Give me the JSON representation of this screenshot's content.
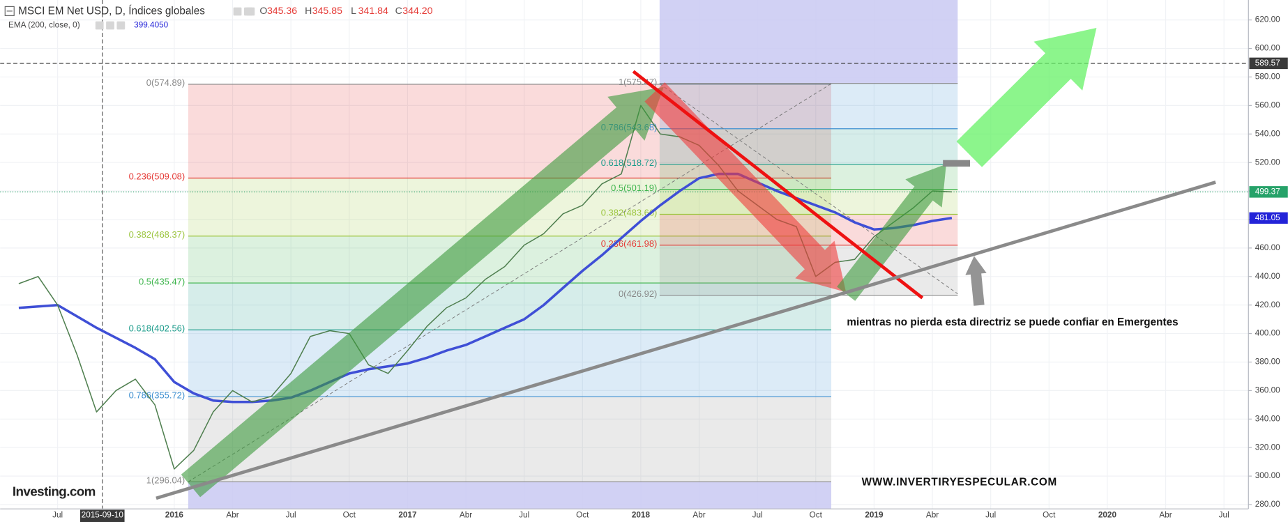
{
  "chart_data": {
    "type": "line",
    "title": "MSCI EM Net USD, D, Índices globales",
    "ohlc": [
      {
        "key": "O",
        "value": 345.36
      },
      {
        "key": "H",
        "value": 345.85
      },
      {
        "key": "L",
        "value": 341.84
      },
      {
        "key": "C",
        "value": 344.2,
        "label": "344.20"
      }
    ],
    "indicator": {
      "name": "EMA (200, close, 0)",
      "value": 399.405,
      "label": "399.4050"
    },
    "x": [
      "2015-05",
      "2015-06",
      "2015-07",
      "2015-08",
      "2015-09",
      "2015-10",
      "2015-11",
      "2015-12",
      "2016-01",
      "2016-02",
      "2016-03",
      "2016-04",
      "2016-05",
      "2016-06",
      "2016-07",
      "2016-08",
      "2016-09",
      "2016-10",
      "2016-11",
      "2016-12",
      "2017-01",
      "2017-02",
      "2017-03",
      "2017-04",
      "2017-05",
      "2017-06",
      "2017-07",
      "2017-08",
      "2017-09",
      "2017-10",
      "2017-11",
      "2017-12",
      "2018-01",
      "2018-02",
      "2018-03",
      "2018-04",
      "2018-05",
      "2018-06",
      "2018-07",
      "2018-08",
      "2018-09",
      "2018-10",
      "2018-11",
      "2018-12",
      "2019-01",
      "2019-02",
      "2019-03",
      "2019-04",
      "2019-05"
    ],
    "series": [
      {
        "name": "MSCI EM Net USD",
        "color": "#4f7f4f",
        "values": [
          435,
          440,
          420,
          385,
          345,
          360,
          368,
          350,
          305,
          318,
          345,
          360,
          352,
          356,
          372,
          398,
          402,
          400,
          378,
          372,
          388,
          405,
          418,
          425,
          438,
          447,
          462,
          470,
          484,
          490,
          505,
          512,
          560,
          540,
          538,
          532,
          518,
          500,
          490,
          480,
          475,
          440,
          450,
          452,
          468,
          478,
          488,
          500,
          499.37
        ]
      },
      {
        "name": "EMA",
        "color": "#3f4fd6",
        "values": [
          418,
          419,
          420,
          412,
          404,
          397,
          390,
          382,
          366,
          358,
          353,
          352,
          352,
          353,
          355,
          360,
          366,
          372,
          375,
          377,
          379,
          383,
          388,
          392,
          398,
          404,
          410,
          420,
          432,
          444,
          455,
          467,
          479,
          490,
          500,
          509,
          512,
          512,
          506,
          500,
          495,
          490,
          485,
          478,
          473,
          474,
          476,
          479,
          481.05
        ]
      }
    ],
    "xlim": [
      "2015-04",
      "2020-08"
    ],
    "xticks": [
      {
        "value": "2015-07",
        "label": "Jul"
      },
      {
        "value": "2016-01",
        "label": "2016"
      },
      {
        "value": "2016-04",
        "label": "Abr"
      },
      {
        "value": "2016-07",
        "label": "Jul"
      },
      {
        "value": "2016-10",
        "label": "Oct"
      },
      {
        "value": "2017-01",
        "label": "2017"
      },
      {
        "value": "2017-04",
        "label": "Abr"
      },
      {
        "value": "2017-07",
        "label": "Jul"
      },
      {
        "value": "2017-10",
        "label": "Oct"
      },
      {
        "value": "2018-01",
        "label": "2018"
      },
      {
        "value": "2018-04",
        "label": "Abr"
      },
      {
        "value": "2018-07",
        "label": "Jul"
      },
      {
        "value": "2018-10",
        "label": "Oct"
      },
      {
        "value": "2019-01",
        "label": "2019"
      },
      {
        "value": "2019-04",
        "label": "Abr"
      },
      {
        "value": "2019-07",
        "label": "Jul"
      },
      {
        "value": "2019-10",
        "label": "Oct"
      },
      {
        "value": "2020-01",
        "label": "2020"
      },
      {
        "value": "2020-04",
        "label": "Abr"
      },
      {
        "value": "2020-07",
        "label": "Jul"
      }
    ],
    "ylim": [
      277,
      634
    ],
    "yticks": [
      {
        "value": 280,
        "label": "280.00"
      },
      {
        "value": 300,
        "label": "300.00"
      },
      {
        "value": 320,
        "label": "320.00"
      },
      {
        "value": 340,
        "label": "340.00"
      },
      {
        "value": 360,
        "label": "360.00"
      },
      {
        "value": 380,
        "label": "380.00"
      },
      {
        "value": 400,
        "label": "400.00"
      },
      {
        "value": 420,
        "label": "420.00"
      },
      {
        "value": 440,
        "label": "440.00"
      },
      {
        "value": 460,
        "label": "460.00"
      },
      {
        "value": 480,
        "label": "480.00"
      },
      {
        "value": 500,
        "label": "500.00"
      },
      {
        "value": 520,
        "label": "520.00"
      },
      {
        "value": 540,
        "label": "540.00"
      },
      {
        "value": 560,
        "label": "560.00"
      },
      {
        "value": 580,
        "label": "580.00"
      },
      {
        "value": 600,
        "label": "600.00"
      },
      {
        "value": 620,
        "label": "620.00"
      }
    ],
    "grid": true,
    "price_markers": [
      {
        "value": 589.57,
        "color": "#3a3a3a",
        "line": "dashed"
      },
      {
        "value": 499.37,
        "color": "#26a269",
        "line": "dotted"
      },
      {
        "value": 481.05,
        "color": "#2323d8"
      }
    ],
    "crosshair_date": "2015-09-10",
    "fib_retracements": [
      {
        "levels": [
          {
            "label": "0(574.89)",
            "value": 574.89,
            "color": "#888888"
          },
          {
            "label": "0.236(509.08)",
            "value": 509.08,
            "color": "#e53935"
          },
          {
            "label": "0.382(468.37)",
            "value": 468.37,
            "color": "#9bc53d"
          },
          {
            "label": "0.5(435.47)",
            "value": 435.47,
            "color": "#3cb44b"
          },
          {
            "label": "0.618(402.56)",
            "value": 402.56,
            "color": "#1a9b8a"
          },
          {
            "label": "0.786(355.72)",
            "value": 355.72,
            "color": "#3d8fd0"
          },
          {
            "label": "1(296.04)",
            "value": 296.04,
            "color": "#8a8a8a"
          }
        ]
      },
      {
        "levels": [
          {
            "label": "1(575.47)",
            "value": 575.47,
            "color": "#888888"
          },
          {
            "label": "0.786(543.68)",
            "value": 543.68,
            "color": "#3d8fd0"
          },
          {
            "label": "0.618(518.72)",
            "value": 518.72,
            "color": "#1a9b8a"
          },
          {
            "label": "0.5(501.19)",
            "value": 501.19,
            "color": "#3cb44b"
          },
          {
            "label": "0.382(483.66)",
            "value": 483.66,
            "color": "#9bc53d"
          },
          {
            "label": "0.236(461.98)",
            "value": 461.98,
            "color": "#e53935"
          },
          {
            "label": "0(426.92)",
            "value": 426.92,
            "color": "#888888"
          }
        ]
      }
    ],
    "annotation": "mientras no pierda esta directriz se puede confiar en Emergentes",
    "watermark": "WWW.INVERTIRYESPECULAR.COM",
    "logo": "Investing.com"
  }
}
